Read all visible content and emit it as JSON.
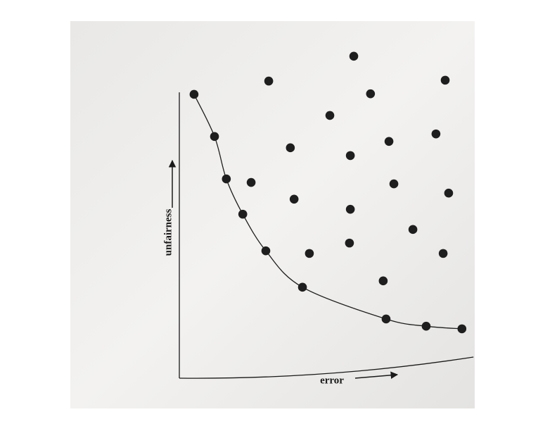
{
  "chart_data": {
    "type": "scatter",
    "xlabel": "error",
    "ylabel": "unfairness",
    "xlim": [
      0,
      102
    ],
    "ylim": [
      0,
      115
    ],
    "series": [
      {
        "color": "#1e1e1e",
        "curve": true,
        "x": [
          5.1,
          12.2,
          16.3,
          22.0,
          30.0,
          42.7,
          71.7,
          85.6,
          98.0
        ],
        "values": [
          98.3,
          83.7,
          69.0,
          56.8,
          44.1,
          31.5,
          20.5,
          18.0,
          17.1
        ]
      },
      {
        "color": "#1e1e1e",
        "curve": false,
        "x": [
          60.5,
          31.0,
          66.3,
          92.2,
          52.2,
          72.7,
          89.0,
          38.5,
          59.3,
          24.9,
          74.4,
          93.4,
          39.8,
          59.3,
          81.0,
          45.1,
          59.0,
          91.5,
          70.7
        ],
        "values": [
          111.5,
          102.9,
          98.5,
          103.2,
          91.0,
          82.0,
          84.6,
          79.8,
          77.1,
          67.8,
          67.3,
          64.1,
          62.0,
          58.5,
          51.5,
          43.2,
          46.8,
          43.2,
          33.7
        ]
      }
    ]
  }
}
